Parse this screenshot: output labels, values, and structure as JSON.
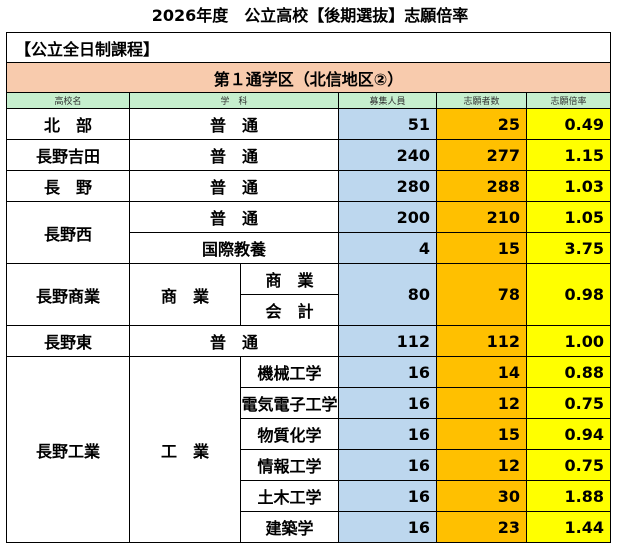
{
  "page_title": "2026年度　公立高校【後期選抜】志願倍率",
  "course": "【公立全日制課程】",
  "district": "第１通学区（北信地区②）",
  "headers": {
    "school": "高校名",
    "dept": "学　科",
    "capacity": "募集人員",
    "applicants": "志願者数",
    "ratio": "志願倍率"
  },
  "rows": [
    {
      "school": "北　部",
      "dept": "普　通",
      "capacity": "51",
      "applicants": "25",
      "ratio": "0.49"
    },
    {
      "school": "長野吉田",
      "dept": "普　通",
      "capacity": "240",
      "applicants": "277",
      "ratio": "1.15"
    },
    {
      "school": "長　野",
      "dept": "普　通",
      "capacity": "280",
      "applicants": "288",
      "ratio": "1.03"
    },
    {
      "school": "長野西",
      "dept": "普　通",
      "capacity": "200",
      "applicants": "210",
      "ratio": "1.05"
    },
    {
      "dept": "国際教養",
      "capacity": "4",
      "applicants": "15",
      "ratio": "3.75"
    },
    {
      "school": "長野商業",
      "dept": "商　業",
      "sub1": "商　業",
      "sub2": "会　計",
      "capacity": "80",
      "applicants": "78",
      "ratio": "0.98"
    },
    {
      "school": "長野東",
      "dept": "普　通",
      "capacity": "112",
      "applicants": "112",
      "ratio": "1.00"
    },
    {
      "school": "長野工業",
      "dept": "工　業",
      "subdept": "機械工学",
      "capacity": "16",
      "applicants": "14",
      "ratio": "0.88"
    },
    {
      "subdept": "電気電子工学",
      "capacity": "16",
      "applicants": "12",
      "ratio": "0.75"
    },
    {
      "subdept": "物質化学",
      "capacity": "16",
      "applicants": "15",
      "ratio": "0.94"
    },
    {
      "subdept": "情報工学",
      "capacity": "16",
      "applicants": "12",
      "ratio": "0.75"
    },
    {
      "subdept": "土木工学",
      "capacity": "16",
      "applicants": "30",
      "ratio": "1.88"
    },
    {
      "subdept": "建築学",
      "capacity": "16",
      "applicants": "23",
      "ratio": "1.44"
    }
  ]
}
